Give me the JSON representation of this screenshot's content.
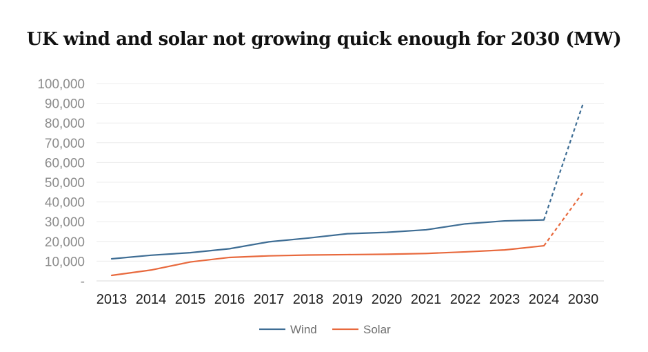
{
  "chart_data": {
    "type": "line",
    "title": "UK wind and solar not growing quick enough for 2030 (MW)",
    "xlabel": "",
    "ylabel": "",
    "categories": [
      "2013",
      "2014",
      "2015",
      "2016",
      "2017",
      "2018",
      "2019",
      "2020",
      "2021",
      "2022",
      "2023",
      "2024",
      "2030"
    ],
    "ylim": [
      0,
      100000
    ],
    "yticks": [
      0,
      10000,
      20000,
      30000,
      40000,
      50000,
      60000,
      70000,
      80000,
      90000,
      100000
    ],
    "ytick_labels": [
      "-",
      "10,000",
      "20,000",
      "30,000",
      "40,000",
      "50,000",
      "60,000",
      "70,000",
      "80,000",
      "90,000",
      "100,000"
    ],
    "grid": true,
    "legend_position": "bottom-center",
    "projection_style": "dashed segment from 2024 to 2030",
    "series": [
      {
        "name": "Wind",
        "color": "#3e6d94",
        "values": [
          11200,
          13000,
          14300,
          16300,
          19800,
          21700,
          23900,
          24600,
          25900,
          28900,
          30400,
          30900,
          90000
        ]
      },
      {
        "name": "Solar",
        "color": "#e8693d",
        "values": [
          2800,
          5500,
          9600,
          11900,
          12700,
          13100,
          13300,
          13500,
          13900,
          14700,
          15700,
          17800,
          45000
        ]
      }
    ]
  }
}
